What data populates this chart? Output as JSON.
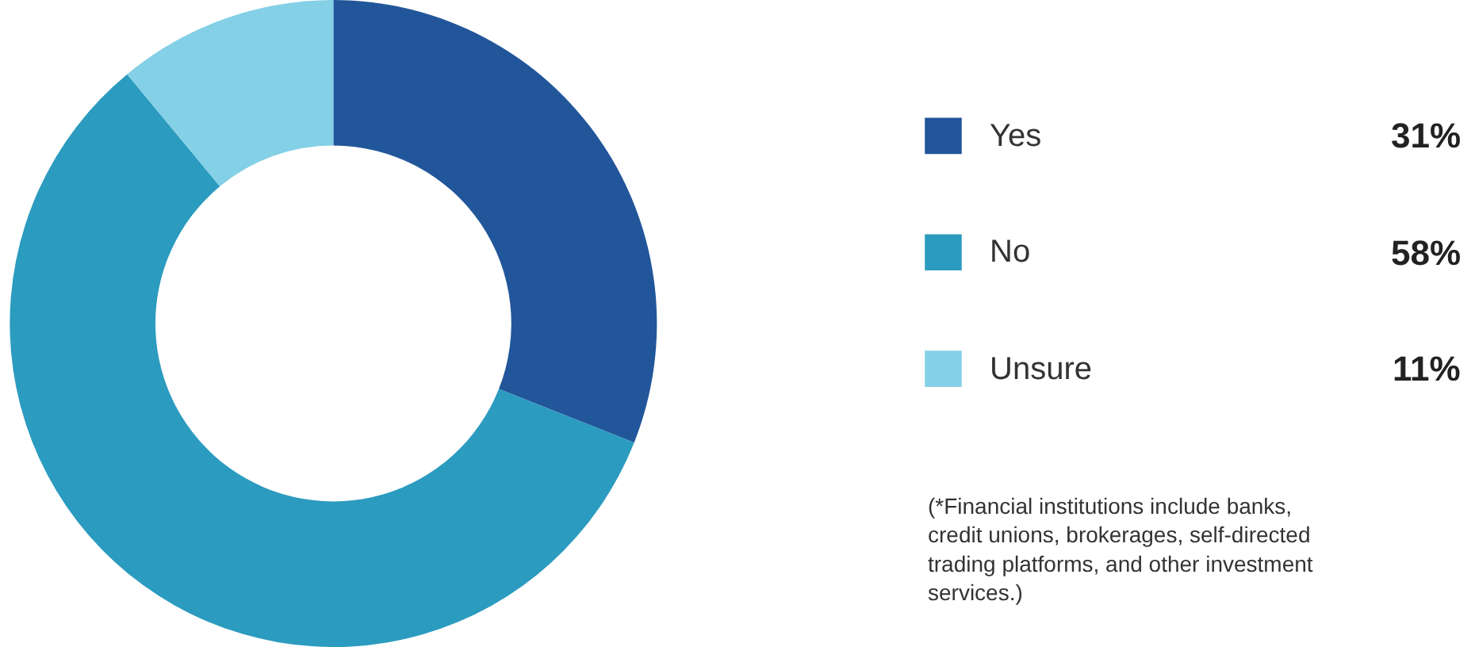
{
  "chart_data": {
    "type": "donut",
    "categories": [
      "Yes",
      "No",
      "Unsure"
    ],
    "values": [
      31,
      58,
      11
    ],
    "colors": [
      "#22569a",
      "#2b9bbf",
      "#84d0e6"
    ],
    "value_labels": [
      "31%",
      "58%",
      "11%"
    ],
    "legend": "right",
    "annotations": [
      "(*Financial institutions include banks, credit unions, brokerages, self-directed trading platforms, and other investment services.)"
    ]
  }
}
